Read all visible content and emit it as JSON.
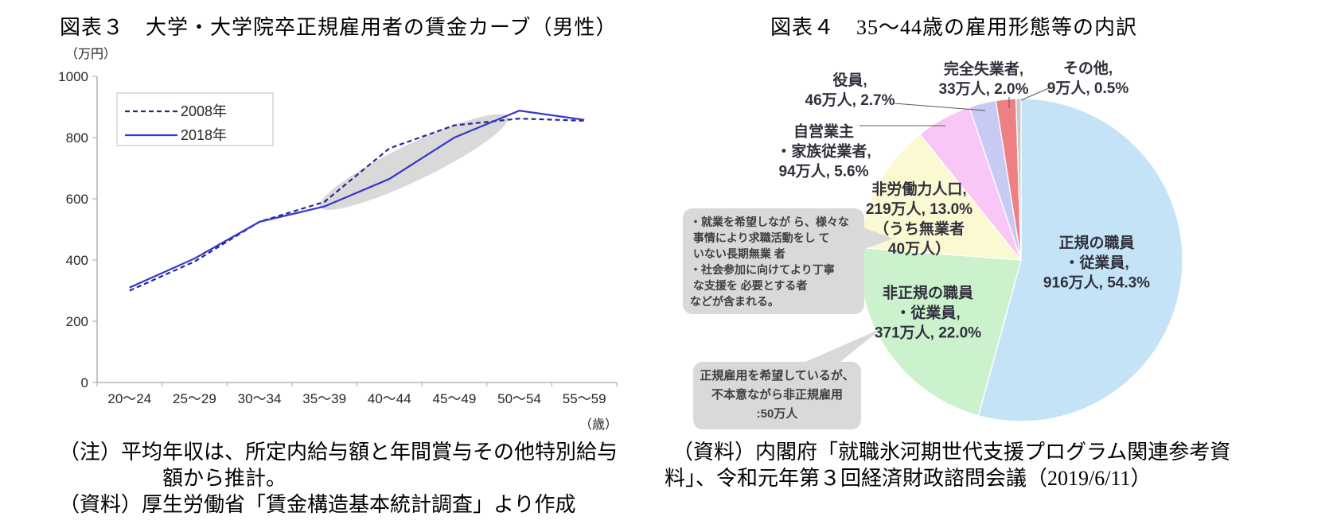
{
  "fig3": {
    "title": "図表３　大学・大学院卒正規雇用者の賃金カーブ（男性）",
    "notes": [
      "（注）平均年収は、所定内給与額と年間賞与その他特別給与",
      "額から推計。",
      "（資料）厚生労働省「賃金構造基本統計調査」より作成"
    ]
  },
  "fig4": {
    "title": "図表４　35～44歳の雇用形態等の内訳",
    "notes": [
      "（資料）内閣府「就職氷河期世代支援プログラム関連参考資",
      "料」、令和元年第３回経済財政諮問会議（2019/6/11）"
    ],
    "callouts": {
      "long_term_jobless": "・就業を希望しなが ら、様々な\n 事情により求職活動をし て\n いない長期無業 者\n・社会参加に向けてより丁寧\n な支援を 必要とする者\nなどが含まれる。",
      "involuntary_nonregular": "正規雇用を希望しているが、\n不本意ながら非正規雇用\n:50万人"
    }
  },
  "chart_data": [
    {
      "type": "line",
      "title": "大学・大学院卒正規雇用者の賃金カーブ（男性）",
      "ylabel": "（万円）",
      "xlabel": "（歳）",
      "ylim": [
        0,
        1000
      ],
      "yticks": [
        0,
        200,
        400,
        600,
        800,
        1000
      ],
      "grid": false,
      "legend_position": "upper-left",
      "categories": [
        "20～24",
        "25～29",
        "30～34",
        "35～39",
        "40～44",
        "45～49",
        "50～54",
        "55～59"
      ],
      "series": [
        {
          "name": "2008年",
          "dashed": true,
          "color": "#26269c",
          "values": [
            300,
            395,
            525,
            590,
            765,
            840,
            862,
            855
          ]
        },
        {
          "name": "2018年",
          "dashed": false,
          "color": "#3535ce",
          "values": [
            310,
            405,
            525,
            575,
            665,
            800,
            888,
            858
          ]
        }
      ],
      "highlight": {
        "shape": "ellipse",
        "color": "#d9d9d9",
        "ry": 23,
        "from": {
          "index": 3,
          "value": 580
        },
        "to": {
          "index": 5.75,
          "value": 860
        }
      }
    },
    {
      "type": "pie",
      "title": "35～44歳の雇用形態等の内訳",
      "start_angle": "top",
      "direction": "clockwise",
      "slices": [
        {
          "label": "正規の職員・従業員",
          "people": "916万人",
          "pct": 54.3,
          "color": "#c5e3f7",
          "display": "正規の職員\n・従業員,\n916万人, 54.3%"
        },
        {
          "label": "非正規の職員・従業員",
          "people": "371万人",
          "pct": 22.0,
          "color": "#ccf2cd",
          "display": "非正規の職員\n・従業員,\n371万人, 22.0%"
        },
        {
          "label": "非労働力人口",
          "people": "219万人",
          "pct": 13.0,
          "color": "#fbf9d2",
          "display": "非労働力人口,\n219万人, 13.0%\n（うち無業者\n40万人）"
        },
        {
          "label": "自営業主・家族従業者",
          "people": "94万人",
          "pct": 5.6,
          "color": "#f9c7f5",
          "display": "自営業主\n・家族従業者,\n94万人, 5.6%"
        },
        {
          "label": "役員",
          "people": "46万人",
          "pct": 2.7,
          "color": "#c9caf4",
          "display": "役員,\n46万人, 2.7%"
        },
        {
          "label": "完全失業者",
          "people": "33万人",
          "pct": 2.0,
          "color": "#ee8084",
          "display": "完全失業者,\n33万人, 2.0%"
        },
        {
          "label": "その他",
          "people": "9万人",
          "pct": 0.5,
          "color": "#c9c9c9",
          "display": "その他,\n9万人, 0.5%"
        }
      ]
    }
  ]
}
